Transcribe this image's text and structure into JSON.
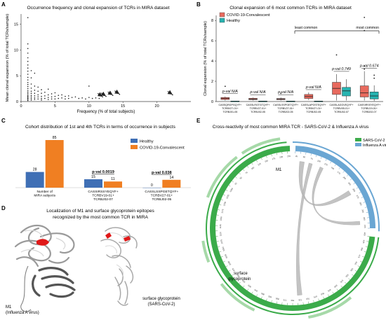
{
  "panels": {
    "A": {
      "letter": "A",
      "title": "Occurrence frequency and clonal expansion of TCRs in MIRA dataset"
    },
    "B": {
      "letter": "B",
      "title": "Clonal expansion of 6 most common TCRs in MIRA dataset"
    },
    "C": {
      "letter": "C",
      "title": "Cohort distribution of 1st and 4th TCRs in terms of occurrence in subjects"
    },
    "D": {
      "letter": "D",
      "title_lines": [
        "Localization of M1 and surface glycoprotein epitopes",
        "recognized by the most common TCR in MIRA"
      ],
      "label_m1": [
        "M1",
        "(Influenza A virus)"
      ],
      "label_sp": [
        "surface glycoprotein",
        "(SARS-CoV-2)"
      ]
    },
    "E": {
      "letter": "E",
      "title": "Cross-reactivity of most common MIRA TCR - SARS-CoV-2 & Influenza A virus",
      "label_m1": "M1",
      "label_sp": [
        "surface",
        "glycoprotein"
      ]
    }
  },
  "colors": {
    "healthy": "#3f6fb5",
    "covid": "#f07f22",
    "b_covid": "#e86a5e",
    "b_healthy": "#27b3b0",
    "sars": "#3bab4a",
    "flu": "#6aa6d3",
    "link": "#b8b8b8"
  },
  "chart_data": [
    {
      "panel": "A",
      "type": "scatter",
      "title": "Occurrence frequency and clonal expansion of TCRs in MIRA dataset",
      "xlabel": "Frequency (% of total subjects)",
      "ylabel": "Mean clonal expansion (% of total TCRs/sample)",
      "xlim": [
        0,
        25
      ],
      "ylim": [
        0,
        17
      ],
      "xticks": [
        "0",
        "5",
        "10",
        "15",
        "20"
      ],
      "yticks": [
        "0",
        "5",
        "10",
        "15"
      ],
      "points": [
        [
          1.0,
          16.3
        ],
        [
          1.0,
          11.2
        ],
        [
          1.0,
          10.3
        ],
        [
          1.0,
          9.4
        ],
        [
          1.0,
          8.5
        ],
        [
          1.0,
          7.8
        ],
        [
          1.0,
          7.1
        ],
        [
          1.0,
          6.5
        ],
        [
          1.0,
          5.9
        ],
        [
          1.0,
          5.3
        ],
        [
          1.0,
          4.7
        ],
        [
          1.0,
          4.2
        ],
        [
          1.0,
          3.7
        ],
        [
          1.0,
          3.3
        ],
        [
          1.0,
          2.9
        ],
        [
          1.0,
          2.5
        ],
        [
          1.0,
          2.1
        ],
        [
          1.0,
          1.8
        ],
        [
          1.0,
          1.5
        ],
        [
          1.0,
          1.2
        ],
        [
          1.0,
          1.0
        ],
        [
          1.0,
          0.8
        ],
        [
          1.0,
          0.6
        ],
        [
          1.0,
          0.4
        ],
        [
          1.0,
          0.2
        ],
        [
          1.5,
          6.0
        ],
        [
          1.5,
          4.6
        ],
        [
          1.5,
          3.4
        ],
        [
          1.5,
          2.6
        ],
        [
          1.5,
          2.0
        ],
        [
          1.5,
          1.6
        ],
        [
          1.5,
          1.2
        ],
        [
          1.5,
          0.9
        ],
        [
          1.5,
          0.6
        ],
        [
          1.5,
          0.3
        ],
        [
          2.0,
          5.5
        ],
        [
          2.0,
          3.0
        ],
        [
          2.0,
          2.2
        ],
        [
          2.0,
          1.6
        ],
        [
          2.0,
          1.1
        ],
        [
          2.0,
          0.7
        ],
        [
          2.0,
          0.4
        ],
        [
          2.5,
          2.8
        ],
        [
          2.5,
          2.0
        ],
        [
          2.5,
          1.3
        ],
        [
          2.5,
          0.9
        ],
        [
          2.5,
          0.5
        ],
        [
          3.0,
          2.3
        ],
        [
          3.0,
          1.6
        ],
        [
          3.0,
          1.0
        ],
        [
          3.0,
          0.6
        ],
        [
          3.0,
          0.3
        ],
        [
          3.5,
          1.8
        ],
        [
          3.5,
          1.1
        ],
        [
          3.5,
          0.6
        ],
        [
          4.0,
          2.4
        ],
        [
          4.0,
          1.3
        ],
        [
          4.0,
          0.8
        ],
        [
          4.0,
          0.4
        ],
        [
          4.5,
          1.5
        ],
        [
          4.5,
          0.9
        ],
        [
          4.5,
          0.5
        ],
        [
          5.0,
          1.7
        ],
        [
          5.0,
          1.0
        ],
        [
          5.0,
          0.5
        ],
        [
          5.5,
          1.2
        ],
        [
          5.5,
          0.6
        ],
        [
          6.0,
          1.3
        ],
        [
          6.0,
          0.7
        ],
        [
          6.5,
          1.0
        ],
        [
          6.5,
          0.5
        ],
        [
          7.0,
          1.1
        ],
        [
          7.0,
          0.6
        ],
        [
          7.5,
          0.8
        ],
        [
          8.0,
          0.9
        ],
        [
          8.5,
          0.6
        ],
        [
          9.0,
          0.7
        ],
        [
          9.5,
          0.5
        ],
        [
          10.0,
          3.0
        ],
        [
          10.0,
          0.8
        ],
        [
          10.5,
          0.6
        ],
        [
          11.0,
          0.7
        ],
        [
          11.5,
          0.6
        ],
        [
          12.0,
          0.9
        ],
        [
          12.5,
          1.0
        ],
        [
          13.5,
          1.2
        ],
        [
          14.5,
          1.4
        ],
        [
          22.3,
          1.3
        ]
      ],
      "arrows_at": [
        [
          12.0,
          0.9
        ],
        [
          12.5,
          1.0
        ],
        [
          13.5,
          1.2
        ],
        [
          14.5,
          1.4
        ],
        [
          22.3,
          1.3
        ]
      ]
    },
    {
      "panel": "B",
      "type": "box",
      "title": "Clonal expansion of 6 most common TCRs in MIRA dataset",
      "ylabel": "Clonal expansion (% of total TCRs/sample)",
      "ylim": [
        0,
        8.5
      ],
      "yticks": [
        "0",
        "2",
        "4",
        "6",
        "8"
      ],
      "legend": [
        "COVID-19-Convalescent",
        "Healthy"
      ],
      "legend_position": "top-left",
      "bracket_left": "least common",
      "bracket_right": "most common",
      "categories": [
        [
          "CASSQRGPGQYF+",
          "TCRBV27-01+",
          "TCRBJ01-05"
        ],
        [
          "CASSLRGTGTQYF+",
          "TCRBV27-01+",
          "TCRBJ02-05"
        ],
        [
          "CASSLSSPGETQYF+",
          "TCRBV27-01+",
          "TCRBJ02-05"
        ],
        [
          "CASSLAPGSTEQYF+",
          "TCRBV27-01+",
          "TCRBJ02-05"
        ],
        [
          "CASSLAGGVEQYF+",
          "TCRBV05-01+",
          "TCRBJ02-07"
        ],
        [
          "CASSIRSSYEQYF+",
          "TCRBV19-01+",
          "TCRBJ02-07"
        ]
      ],
      "pvals": [
        "p-val N/A",
        "p-val N/A",
        "p-val N/A",
        "p-val N/A",
        "p-val 0.749",
        "p-val 0.674"
      ],
      "covid": [
        [
          0.1,
          0.2,
          0.3,
          0.4,
          0.5
        ],
        [
          0.1,
          0.18,
          0.25,
          0.32,
          0.4
        ],
        [
          0.1,
          0.18,
          0.24,
          0.3,
          0.4
        ],
        [
          0.15,
          0.3,
          0.5,
          0.7,
          0.9
        ],
        [
          0.1,
          0.7,
          1.3,
          1.9,
          2.7
        ],
        [
          0.1,
          0.45,
          0.85,
          1.55,
          3.0
        ]
      ],
      "healthy": [
        [
          0.02,
          0.03,
          0.04,
          0.05,
          0.06
        ],
        [
          0.02,
          0.03,
          0.04,
          0.05,
          0.06
        ],
        [
          0.02,
          0.03,
          0.04,
          0.05,
          0.06
        ],
        [
          0.02,
          0.03,
          0.04,
          0.05,
          0.06
        ],
        [
          0.1,
          0.55,
          1.05,
          1.4,
          2.2
        ],
        [
          0.05,
          0.25,
          0.55,
          0.95,
          1.6
        ]
      ],
      "outliers_covid": [
        [
          0,
          1.5
        ],
        [
          2,
          0.8
        ],
        [
          4,
          4.6
        ],
        [
          5,
          3.5
        ],
        [
          5,
          3.2
        ],
        [
          5,
          7.0
        ],
        [
          5,
          8.3
        ]
      ],
      "outliers_healthy": [
        [
          5,
          2.6
        ],
        [
          5,
          2.3
        ]
      ]
    },
    {
      "panel": "C",
      "type": "bar",
      "title": "Cohort distribution of 1st and 4th TCRs in terms of occurrence in subjects",
      "ylim": [
        0,
        90
      ],
      "legend_position": "top-right",
      "categories": [
        [
          "Number of",
          "MIRA subjects"
        ],
        [
          "CASSIRSSYEQYF+",
          "TCRBV19-01+",
          "TCRBJ02-07"
        ],
        [
          "CASSLSSPGETQYF+",
          "TCRBV27-01+",
          "TCRBJ02-05"
        ]
      ],
      "series": [
        {
          "name": "Healthy",
          "values": [
            28,
            15,
            0
          ]
        },
        {
          "name": "COVID-19-Convalescent",
          "values": [
            85,
            11,
            14
          ]
        }
      ],
      "pvals": [
        "",
        "p-val 0.0019",
        "p-val 0.038"
      ]
    },
    {
      "panel": "E",
      "type": "chord",
      "title": "Cross-reactivity of most common MIRA TCR - SARS-CoV-2 & Influenza A virus",
      "legend": [
        "SARS-CoV-2",
        "Influenza A virus"
      ],
      "legend_position": "top-right",
      "inner_ticks": [
        "25",
        "50",
        "75",
        "100",
        "125",
        "150",
        "175",
        "200",
        "225",
        "250",
        "275",
        "300",
        "325",
        "350",
        "375",
        "400",
        "425",
        "450",
        "475",
        "500",
        "525",
        "550",
        "575",
        "600",
        "625",
        "650",
        "675",
        "700",
        "725",
        "750",
        "775",
        "800",
        "825",
        "850",
        "875",
        "900",
        "925",
        "950",
        "975",
        "1000",
        "1025",
        "1050",
        "1075",
        "1100",
        "1125",
        "1150",
        "1175",
        "1200",
        "1225",
        "1250",
        "25",
        "50",
        "75",
        "100",
        "125",
        "150",
        "175",
        "200",
        "225"
      ]
    }
  ]
}
